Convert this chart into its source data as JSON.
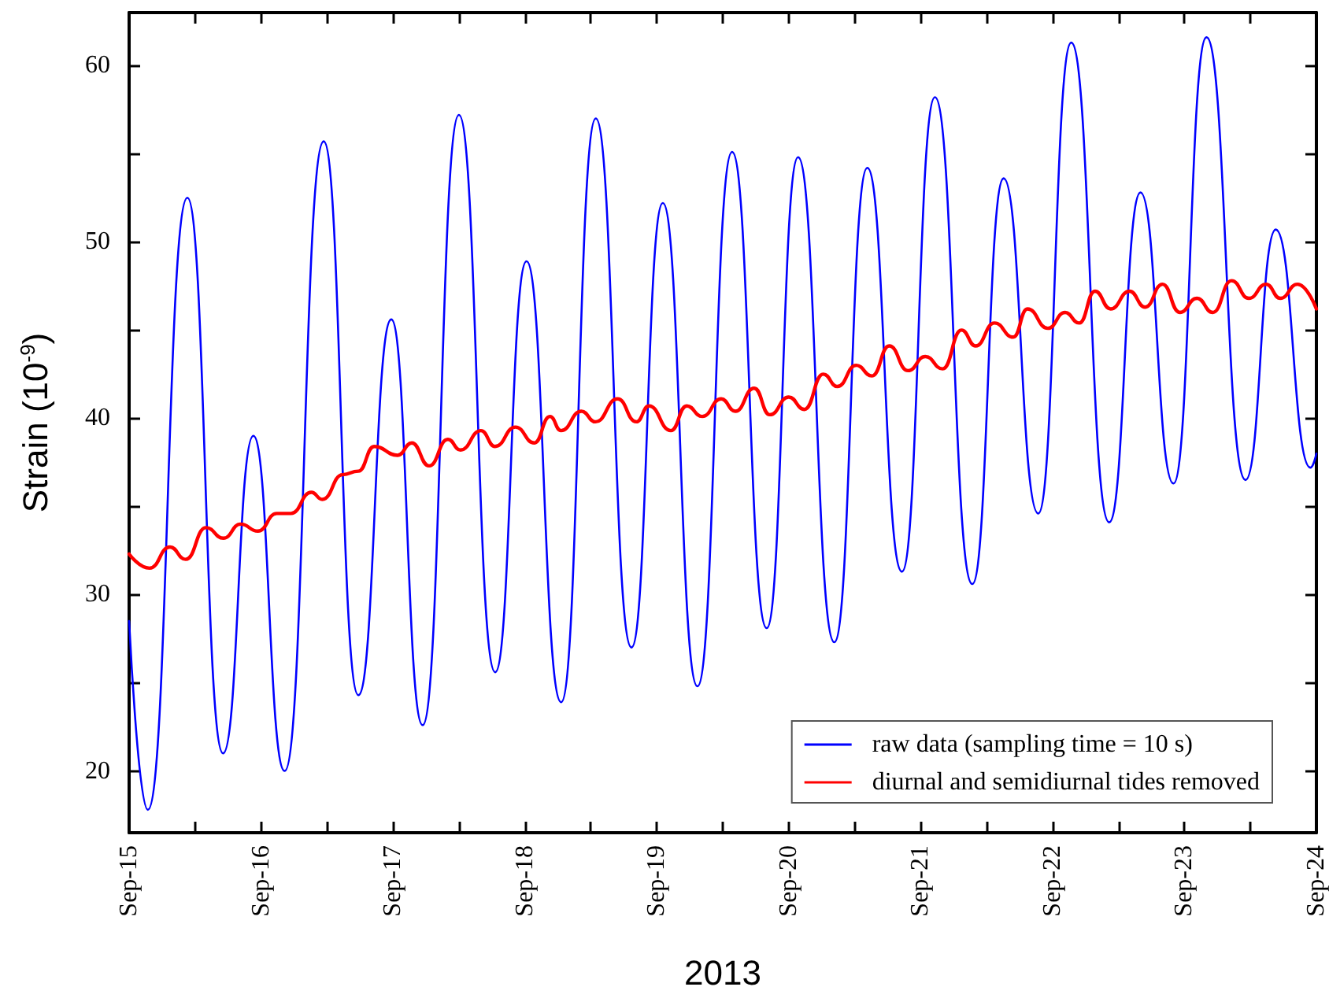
{
  "chart_data": {
    "type": "line",
    "xlabel": "2013",
    "ylabel": "Strain (10$^{-9}$)",
    "xlim": [
      "2013-09-15",
      "2013-09-24"
    ],
    "xticks": [
      {
        "value": "2013-09-15",
        "label": "Sep-15"
      },
      {
        "value": "2013-09-15T12:00",
        "label": null
      },
      {
        "value": "2013-09-16",
        "label": "Sep-16"
      },
      {
        "value": "2013-09-16T12:00",
        "label": null
      },
      {
        "value": "2013-09-17",
        "label": "Sep-17"
      },
      {
        "value": "2013-09-17T12:00",
        "label": null
      },
      {
        "value": "2013-09-18",
        "label": "Sep-18"
      },
      {
        "value": "2013-09-18T12:00",
        "label": null
      },
      {
        "value": "2013-09-19",
        "label": "Sep-19"
      },
      {
        "value": "2013-09-19T12:00",
        "label": null
      },
      {
        "value": "2013-09-20",
        "label": "Sep-20"
      },
      {
        "value": "2013-09-20T12:00",
        "label": null
      },
      {
        "value": "2013-09-21",
        "label": "Sep-21"
      },
      {
        "value": "2013-09-21T12:00",
        "label": null
      },
      {
        "value": "2013-09-22",
        "label": "Sep-22"
      },
      {
        "value": "2013-09-22T12:00",
        "label": null
      },
      {
        "value": "2013-09-23",
        "label": "Sep-23"
      },
      {
        "value": "2013-09-23T12:00",
        "label": null
      },
      {
        "value": "2013-09-24",
        "label": "Sep-24"
      }
    ],
    "ylim": [
      16.5,
      63
    ],
    "yticks": [
      20,
      {
        "value": 25,
        "label": null
      },
      30,
      {
        "value": 35,
        "label": null
      },
      40,
      {
        "value": 45,
        "label": null
      },
      50,
      {
        "value": 55,
        "label": null
      },
      60
    ],
    "grid": false,
    "legend": "bottom right",
    "marker": "none",
    "line_style": "solid",
    "series": [
      {
        "name": "raw data (sampling time = 10 s)",
        "color": "#0000ff",
        "x": [
          "2013-09-15T00:00",
          "2013-09-15T03:24",
          "2013-09-15T10:36",
          "2013-09-15T17:06",
          "2013-09-15T22:36",
          "2013-09-16T04:18",
          "2013-09-16T11:24",
          "2013-09-16T17:42",
          "2013-09-16T23:42",
          "2013-09-17T05:24",
          "2013-09-17T12:00",
          "2013-09-17T18:36",
          "2013-09-18T00:18",
          "2013-09-18T06:36",
          "2013-09-18T12:54",
          "2013-09-18T19:24",
          "2013-09-19T01:06",
          "2013-09-19T07:24",
          "2013-09-19T13:42",
          "2013-09-19T20:00",
          "2013-09-20T01:42",
          "2013-09-20T08:18",
          "2013-09-20T14:18",
          "2013-09-20T20:36",
          "2013-09-21T02:36",
          "2013-09-21T09:24",
          "2013-09-21T15:06",
          "2013-09-21T21:24",
          "2013-09-22T03:24",
          "2013-09-22T10:18",
          "2013-09-22T16:00",
          "2013-09-22T22:00",
          "2013-09-23T04:00",
          "2013-09-23T11:06",
          "2013-09-23T16:36",
          "2013-09-23T22:54",
          "2013-09-24T00:00"
        ],
        "values": [
          28.5,
          17.8,
          52.5,
          21.0,
          39.0,
          20.0,
          55.7,
          24.3,
          45.6,
          22.6,
          57.2,
          25.6,
          48.9,
          23.9,
          57.0,
          27.0,
          52.2,
          24.8,
          55.1,
          28.1,
          54.8,
          27.3,
          54.2,
          31.3,
          58.2,
          30.6,
          53.6,
          34.6,
          61.3,
          34.1,
          52.8,
          36.3,
          61.6,
          36.5,
          50.7,
          37.2,
          38.0
        ]
      },
      {
        "name": "diurnal and semidiurnal tides removed",
        "color": "#ff0000",
        "x": [
          "2013-09-15T00:00",
          "2013-09-15T03:43",
          "2013-09-15T07:26",
          "2013-09-15T10:17",
          "2013-09-15T14:00",
          "2013-09-15T17:09",
          "2013-09-15T20:17",
          "2013-09-15T23:26",
          "2013-09-16T02:51",
          "2013-09-16T05:26",
          "2013-09-16T09:09",
          "2013-09-16T11:09",
          "2013-09-16T14:51",
          "2013-09-16T17:43",
          "2013-09-16T20:34",
          "2013-09-17T00:51",
          "2013-09-17T03:26",
          "2013-09-17T06:34",
          "2013-09-17T10:00",
          "2013-09-17T12:17",
          "2013-09-17T16:00",
          "2013-09-17T18:34",
          "2013-09-17T22:17",
          "2013-09-18T01:43",
          "2013-09-18T04:34",
          "2013-09-18T06:34",
          "2013-09-18T10:17",
          "2013-09-18T12:51",
          "2013-09-18T16:51",
          "2013-09-18T20:17",
          "2013-09-18T22:34",
          "2013-09-19T02:34",
          "2013-09-19T05:26",
          "2013-09-19T08:17",
          "2013-09-19T11:43",
          "2013-09-19T14:17",
          "2013-09-19T17:43",
          "2013-09-19T20:34",
          "2013-09-20T00:00",
          "2013-09-20T02:51",
          "2013-09-20T06:17",
          "2013-09-20T08:51",
          "2013-09-20T12:17",
          "2013-09-20T15:09",
          "2013-09-20T18:17",
          "2013-09-20T21:43",
          "2013-09-21T00:51",
          "2013-09-21T04:00",
          "2013-09-21T07:26",
          "2013-09-21T10:00",
          "2013-09-21T13:26",
          "2013-09-21T16:51",
          "2013-09-21T19:26",
          "2013-09-21T23:09",
          "2013-09-22T02:17",
          "2013-09-22T04:51",
          "2013-09-22T07:43",
          "2013-09-22T10:34",
          "2013-09-22T14:00",
          "2013-09-22T16:51",
          "2013-09-22T20:00",
          "2013-09-22T23:09",
          "2013-09-23T02:17",
          "2013-09-23T05:09",
          "2013-09-23T08:34",
          "2013-09-23T11:43",
          "2013-09-23T14:51",
          "2013-09-23T17:26",
          "2013-09-23T20:34",
          "2013-09-24T00:00"
        ],
        "values": [
          32.3,
          31.5,
          32.7,
          32.0,
          33.8,
          33.2,
          34.0,
          33.6,
          34.6,
          34.6,
          35.8,
          35.4,
          36.8,
          37.0,
          38.4,
          37.9,
          38.6,
          37.3,
          38.8,
          38.2,
          39.3,
          38.4,
          39.5,
          38.6,
          40.1,
          39.3,
          40.4,
          39.8,
          41.1,
          39.8,
          40.7,
          39.3,
          40.7,
          40.1,
          41.1,
          40.4,
          41.7,
          40.2,
          41.2,
          40.5,
          42.5,
          41.8,
          43.0,
          42.4,
          44.1,
          42.7,
          43.5,
          42.8,
          45.0,
          44.1,
          45.4,
          44.6,
          46.2,
          45.1,
          46.0,
          45.4,
          47.2,
          46.2,
          47.2,
          46.3,
          47.6,
          46.0,
          46.8,
          46.0,
          47.8,
          46.8,
          47.6,
          46.8,
          47.6,
          46.2
        ]
      }
    ]
  }
}
